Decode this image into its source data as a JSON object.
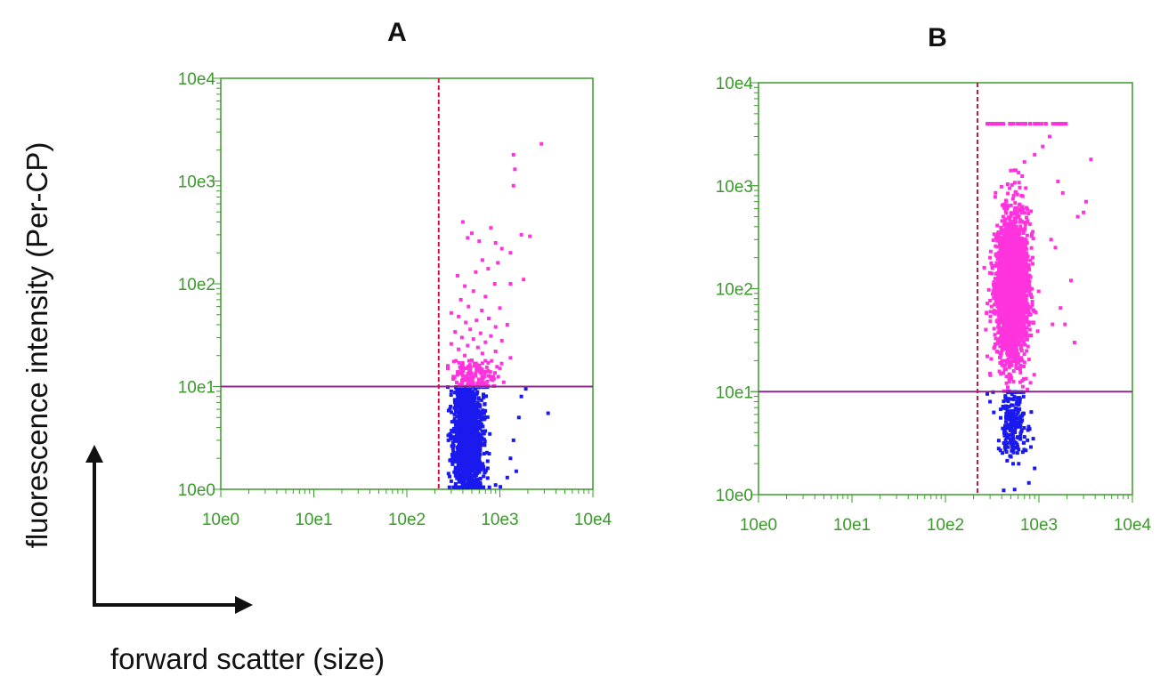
{
  "figure": {
    "ylabel": "fluorescence intensity (Per-CP)",
    "xlabel": "forward scatter (size)"
  },
  "colors": {
    "axis": "#3a9a2a",
    "tick_label": "#3a9a2a",
    "vertical_gate": "#cc1144",
    "horizontal_gate": "#8a2a8a",
    "positive_points": "#ff33dd",
    "negative_points": "#1a1aee"
  },
  "chart_data": [
    {
      "type": "scatter",
      "title": "A",
      "x_scale": "log",
      "y_scale": "log",
      "xlim": [
        1,
        10000
      ],
      "ylim": [
        1,
        10000
      ],
      "xticks": [
        "10e0",
        "10e1",
        "10e2",
        "10e3",
        "10e4"
      ],
      "yticks": [
        "10e0",
        "10e1",
        "10e2",
        "10e3",
        "10e4"
      ],
      "gates": {
        "x": 220,
        "y": 10
      },
      "grid": false,
      "series": [
        {
          "role": "above-threshold",
          "color": "#ff33dd",
          "points": [
            [
              2800,
              2300
            ],
            [
              1400,
              1800
            ],
            [
              1450,
              1300
            ],
            [
              1400,
              900
            ],
            [
              800,
              350
            ],
            [
              1700,
              300
            ],
            [
              2100,
              290
            ],
            [
              400,
              400
            ],
            [
              500,
              310
            ],
            [
              450,
              280
            ],
            [
              600,
              260
            ],
            [
              900,
              250
            ],
            [
              1050,
              220
            ],
            [
              1300,
              200
            ],
            [
              650,
              170
            ],
            [
              950,
              160
            ],
            [
              750,
              140
            ],
            [
              550,
              130
            ],
            [
              1800,
              110
            ],
            [
              1300,
              100
            ],
            [
              880,
              100
            ],
            [
              350,
              120
            ],
            [
              420,
              95
            ],
            [
              520,
              85
            ],
            [
              700,
              75
            ],
            [
              380,
              70
            ],
            [
              460,
              60
            ],
            [
              1000,
              58
            ],
            [
              640,
              55
            ],
            [
              300,
              52
            ],
            [
              360,
              48
            ],
            [
              760,
              46
            ],
            [
              560,
              44
            ],
            [
              430,
              42
            ],
            [
              1200,
              40
            ],
            [
              900,
              38
            ],
            [
              480,
              36
            ],
            [
              330,
              34
            ],
            [
              620,
              33
            ],
            [
              800,
              31
            ],
            [
              390,
              30
            ],
            [
              520,
              29
            ],
            [
              1050,
              28
            ],
            [
              700,
              27
            ],
            [
              300,
              26
            ],
            [
              450,
              25
            ],
            [
              580,
              24
            ],
            [
              360,
              23
            ],
            [
              900,
              22
            ],
            [
              650,
              21
            ],
            [
              420,
              20
            ],
            [
              1300,
              19
            ],
            [
              500,
              18
            ],
            [
              320,
              17.5
            ],
            [
              750,
              17
            ],
            [
              600,
              16
            ],
            [
              400,
              15.5
            ],
            [
              1000,
              15
            ],
            [
              480,
              14
            ],
            [
              550,
              13.5
            ],
            [
              350,
              13
            ],
            [
              850,
              12.5
            ],
            [
              660,
              12
            ],
            [
              430,
              11.5
            ],
            [
              1100,
              11
            ],
            [
              520,
              10.8
            ],
            [
              380,
              10.5
            ],
            [
              720,
              10.3
            ]
          ]
        },
        {
          "role": "below-threshold",
          "color": "#1a1aee",
          "points": [
            [
              3300,
              5.5
            ],
            [
              1900,
              9.5
            ],
            [
              1700,
              8
            ],
            [
              1600,
              5
            ],
            [
              1400,
              3
            ],
            [
              1300,
              2
            ],
            [
              1500,
              1.5
            ],
            [
              1200,
              1.3
            ],
            [
              900,
              1.1
            ],
            [
              350,
              1.05
            ],
            [
              300,
              1.2
            ],
            [
              280,
              3
            ],
            [
              290,
              6
            ],
            [
              300,
              9
            ]
          ]
        }
      ]
    },
    {
      "type": "scatter",
      "title": "B",
      "x_scale": "log",
      "y_scale": "log",
      "xlim": [
        1,
        10000
      ],
      "ylim": [
        1,
        10000
      ],
      "xticks": [
        "10e0",
        "10e1",
        "10e2",
        "10e3",
        "10e4"
      ],
      "yticks": [
        "10e0",
        "10e1",
        "10e2",
        "10e3",
        "10e4"
      ],
      "gates": {
        "x": 220,
        "y": 10
      },
      "grid": false,
      "series": [
        {
          "role": "above-threshold",
          "color": "#ff33dd",
          "points": [
            [
              3600,
              1800
            ],
            [
              3200,
              700
            ],
            [
              3000,
              550
            ],
            [
              2600,
              500
            ],
            [
              2200,
              120
            ],
            [
              1900,
              45
            ],
            [
              2400,
              30
            ],
            [
              1300,
              3000
            ],
            [
              1100,
              2400
            ],
            [
              900,
              2000
            ],
            [
              700,
              1700
            ],
            [
              500,
              1400
            ],
            [
              1600,
              1100
            ],
            [
              1800,
              850
            ],
            [
              650,
              800
            ],
            [
              450,
              600
            ],
            [
              1350,
              300
            ],
            [
              1500,
              250
            ],
            [
              300,
              200
            ],
            [
              260,
              160
            ],
            [
              1700,
              65
            ],
            [
              1400,
              45
            ],
            [
              300,
              15
            ],
            [
              280,
              22
            ],
            [
              270,
              40
            ]
          ]
        },
        {
          "role": "below-threshold",
          "color": "#1a1aee",
          "points": [
            [
              420,
              1.1
            ],
            [
              550,
              1.12
            ],
            [
              780,
              1.3
            ],
            [
              900,
              1.8
            ],
            [
              450,
              2.6
            ],
            [
              820,
              2.9
            ],
            [
              300,
              8
            ],
            [
              280,
              9.5
            ]
          ]
        }
      ]
    }
  ]
}
